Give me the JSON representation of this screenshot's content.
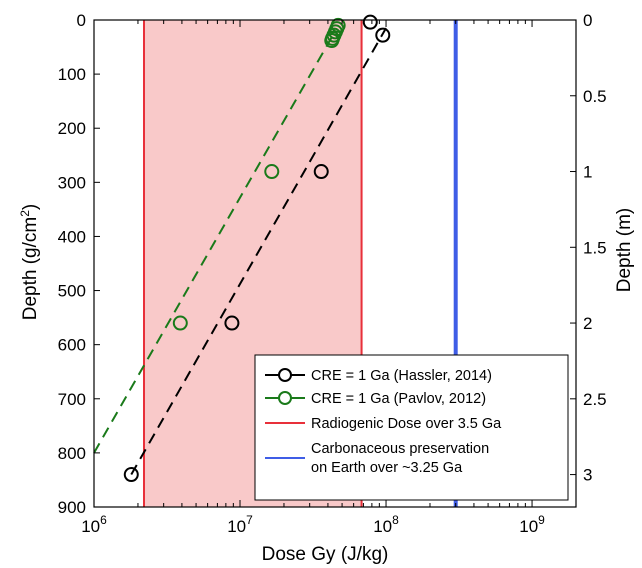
{
  "chart_data": {
    "type": "scatter",
    "xlabel": "Dose Gy (J/kg)",
    "ylabel_left": "Depth (g/cm",
    "ylabel_left_sup": "2",
    "ylabel_left_end": ")",
    "ylabel_right": "Depth (m)",
    "x_scale": "log",
    "xlim": [
      1000000,
      2000000000
    ],
    "ylim_left": [
      0,
      900
    ],
    "ylim_right": [
      0,
      3.214
    ],
    "x_ticks": [
      {
        "value": 1000000,
        "base": "10",
        "exp": "6"
      },
      {
        "value": 10000000,
        "base": "10",
        "exp": "7"
      },
      {
        "value": 100000000,
        "base": "10",
        "exp": "8"
      },
      {
        "value": 1000000000,
        "base": "10",
        "exp": "9"
      }
    ],
    "y_ticks_left": [
      0,
      100,
      200,
      300,
      400,
      500,
      600,
      700,
      800,
      900
    ],
    "y_ticks_left_labels": [
      "0",
      "100",
      "200",
      "300",
      "400",
      "500",
      "600",
      "700",
      "800",
      "900"
    ],
    "y_ticks_right": [
      0,
      0.5,
      1,
      1.5,
      2,
      2.5,
      3
    ],
    "y_ticks_right_labels": [
      "0",
      "0.5",
      "1",
      "1.5",
      "2",
      "2.5",
      "3"
    ],
    "y_right_per_left": 0.003571,
    "shaded_region": {
      "x_start": 2200000,
      "x_end": 68000000,
      "color": "#f9c9c9",
      "edge_color": "#e8303a"
    },
    "vertical_lines": [
      {
        "name": "Carbonaceous preservation on Earth over ~3.25 Ga",
        "x": 300000000,
        "color": "#3f5de6"
      }
    ],
    "series": [
      {
        "name": "CRE = 1 Ga (Hassler, 2014)",
        "color": "#000000",
        "points": [
          {
            "x": 1800000,
            "y": 840
          },
          {
            "x": 8800000,
            "y": 560
          },
          {
            "x": 36000000,
            "y": 280
          },
          {
            "x": 95000000,
            "y": 28
          },
          {
            "x": 78000000,
            "y": 4
          }
        ],
        "trend_line": [
          {
            "x": 1800000,
            "y": 840
          },
          {
            "x": 100000000,
            "y": 15
          }
        ]
      },
      {
        "name": "CRE = 1 Ga (Pavlov, 2012)",
        "color": "#1a7a1a",
        "points": [
          {
            "x": 3900000,
            "y": 560
          },
          {
            "x": 16500000,
            "y": 280
          },
          {
            "x": 47000000,
            "y": 10
          },
          {
            "x": 46000000,
            "y": 16
          },
          {
            "x": 45000000,
            "y": 22
          },
          {
            "x": 44000000,
            "y": 28
          },
          {
            "x": 43000000,
            "y": 34
          },
          {
            "x": 42500000,
            "y": 38
          }
        ],
        "trend_line": [
          {
            "x": 1000000,
            "y": 800
          },
          {
            "x": 45000000,
            "y": 20
          }
        ]
      }
    ],
    "legend": [
      {
        "label": "CRE = 1 Ga (Hassler, 2014)",
        "kind": "line-marker",
        "color": "#000000"
      },
      {
        "label": "CRE = 1 Ga (Pavlov, 2012)",
        "kind": "line-marker",
        "color": "#1a7a1a"
      },
      {
        "label": "Radiogenic Dose over 3.5 Ga",
        "kind": "line",
        "color": "#e8303a"
      },
      {
        "label_lines": [
          "Carbonaceous preservation",
          "on Earth over ~3.25 Ga"
        ],
        "kind": "line",
        "color": "#3f5de6"
      }
    ],
    "legend_position": "bottom-right"
  }
}
